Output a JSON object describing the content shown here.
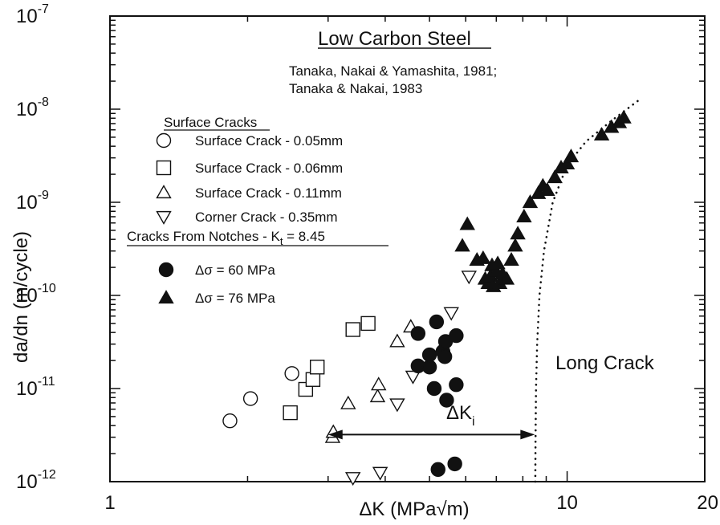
{
  "chart_data": {
    "type": "scatter",
    "title": "Low Carbon Steel",
    "reference_lines": [
      "Tanaka, Nakai & Yamashita, 1981;",
      "Tanaka & Nakai, 1983"
    ],
    "xlabel": "ΔK (MPa√m)",
    "ylabel": "da/dn (m/cycle)",
    "x_scale": "log",
    "y_scale": "log",
    "xlim": [
      1,
      20
    ],
    "ylim": [
      1e-12,
      1e-07
    ],
    "x_ticks": [
      {
        "value": 1,
        "label": "1"
      },
      {
        "value": 10,
        "label": "10"
      },
      {
        "value": 20,
        "label": "20"
      }
    ],
    "y_ticks": [
      {
        "value": 1e-07,
        "base": "10",
        "exp": "-7"
      },
      {
        "value": 1e-08,
        "base": "10",
        "exp": "-8"
      },
      {
        "value": 1e-09,
        "base": "10",
        "exp": "-9"
      },
      {
        "value": 1e-10,
        "base": "10",
        "exp": "-10"
      },
      {
        "value": 1e-11,
        "base": "10",
        "exp": "-11"
      },
      {
        "value": 1e-12,
        "base": "10",
        "exp": "-12"
      }
    ],
    "grid": false,
    "legend_placement": "upper-left",
    "legend_groups": [
      {
        "heading": "Surface Cracks",
        "entries": [
          0,
          1,
          2,
          3
        ]
      },
      {
        "heading_main": "Cracks From Notches - K",
        "heading_sub": "t",
        "heading_tail": " = 8.45",
        "entries": [
          4,
          5
        ]
      }
    ],
    "series": [
      {
        "name": "Surface Crack - 0.05mm",
        "marker": "circle-open",
        "points": [
          [
            1.83,
            4.5e-12
          ],
          [
            2.03,
            7.8e-12
          ],
          [
            2.5,
            1.45e-11
          ]
        ]
      },
      {
        "name": "Surface Crack - 0.06mm",
        "marker": "square-open",
        "points": [
          [
            2.48,
            5.5e-12
          ],
          [
            2.68,
            9.8e-12
          ],
          [
            2.78,
            1.25e-11
          ],
          [
            2.84,
            1.7e-11
          ],
          [
            3.4,
            4.3e-11
          ],
          [
            3.67,
            5e-11
          ]
        ]
      },
      {
        "name": "Surface Crack - 0.11mm",
        "marker": "triangle-up-open",
        "points": [
          [
            3.07,
            3e-12
          ],
          [
            3.08,
            3.4e-12
          ],
          [
            3.32,
            6.9e-12
          ],
          [
            3.85,
            8.2e-12
          ],
          [
            3.87,
            1.1e-11
          ],
          [
            4.25,
            3.2e-11
          ],
          [
            4.55,
            4.6e-11
          ]
        ]
      },
      {
        "name": "Corner Crack - 0.35mm",
        "marker": "triangle-down-open",
        "points": [
          [
            3.4,
            1.1e-12
          ],
          [
            3.9,
            1.25e-12
          ],
          [
            4.25,
            6.8e-12
          ],
          [
            4.6,
            1.35e-11
          ],
          [
            5.58,
            6.5e-11
          ],
          [
            6.1,
            1.6e-10
          ]
        ]
      },
      {
        "name": "Δσ = 60 MPa",
        "marker": "circle-filled",
        "points": [
          [
            4.72,
            1.75e-11
          ],
          [
            4.72,
            3.9e-11
          ],
          [
            5.0,
            1.7e-11
          ],
          [
            5.0,
            2.3e-11
          ],
          [
            5.12,
            1e-11
          ],
          [
            5.18,
            5.2e-11
          ],
          [
            5.22,
            1.35e-12
          ],
          [
            5.35,
            2.5e-11
          ],
          [
            5.4,
            2.2e-11
          ],
          [
            5.42,
            3.2e-11
          ],
          [
            5.45,
            7.5e-12
          ],
          [
            5.68,
            1.55e-12
          ],
          [
            5.72,
            3.7e-11
          ],
          [
            5.72,
            1.1e-11
          ]
        ]
      },
      {
        "name": "Δσ = 76 MPa",
        "marker": "triangle-up-filled",
        "points": [
          [
            5.9,
            3.4e-10
          ],
          [
            6.05,
            5.8e-10
          ],
          [
            6.35,
            2.4e-10
          ],
          [
            6.55,
            2.5e-10
          ],
          [
            6.62,
            1.5e-10
          ],
          [
            6.72,
            1.35e-10
          ],
          [
            6.8,
            1.6e-10
          ],
          [
            6.85,
            2.1e-10
          ],
          [
            6.9,
            1.25e-10
          ],
          [
            7.0,
            1.8e-10
          ],
          [
            7.05,
            2.2e-10
          ],
          [
            7.12,
            1.35e-10
          ],
          [
            7.22,
            1.7e-10
          ],
          [
            7.38,
            1.5e-10
          ],
          [
            7.55,
            2.4e-10
          ],
          [
            7.7,
            3.4e-10
          ],
          [
            7.8,
            4.6e-10
          ],
          [
            8.05,
            7e-10
          ],
          [
            8.3,
            1e-09
          ],
          [
            8.65,
            1.25e-09
          ],
          [
            8.85,
            1.5e-09
          ],
          [
            9.05,
            1.35e-09
          ],
          [
            9.4,
            1.85e-09
          ],
          [
            9.7,
            2.35e-09
          ],
          [
            10.0,
            2.6e-09
          ],
          [
            10.2,
            3.1e-09
          ],
          [
            11.9,
            5.3e-09
          ],
          [
            12.5,
            6.4e-09
          ],
          [
            13.0,
            7.2e-09
          ],
          [
            13.3,
            8.1e-09
          ]
        ]
      }
    ],
    "long_crack_curve": {
      "label": "Long Crack",
      "style": "dotted",
      "points": [
        [
          8.52,
          1e-12
        ],
        [
          8.53,
          3e-12
        ],
        [
          8.55,
          1e-11
        ],
        [
          8.6,
          3e-11
        ],
        [
          8.7,
          1e-10
        ],
        [
          8.9,
          3e-10
        ],
        [
          9.3,
          1e-09
        ],
        [
          10.0,
          2.5e-09
        ],
        [
          11.0,
          4.5e-09
        ],
        [
          12.5,
          7.5e-09
        ],
        [
          14.5,
          1.3e-08
        ]
      ]
    },
    "annotation": {
      "label_main": "ΔK",
      "label_sub": "i",
      "arrow_from_x": 3.0,
      "arrow_to_x": 8.5,
      "arrow_y": 3.2e-12
    }
  }
}
